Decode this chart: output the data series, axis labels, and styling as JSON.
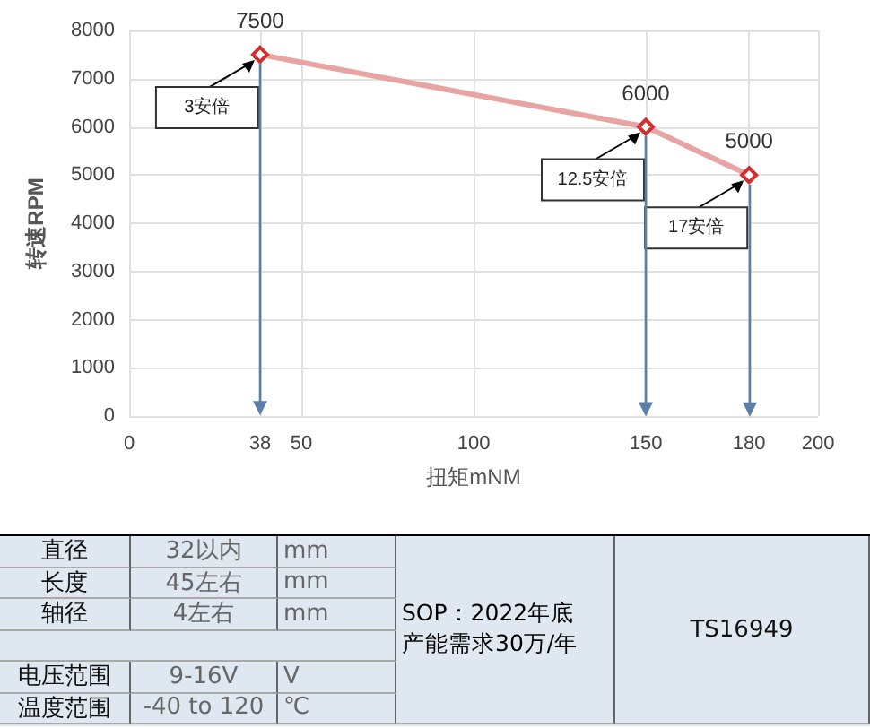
{
  "chart_data": {
    "type": "line",
    "xlabel": "扭矩mNM",
    "ylabel": "转速RPM",
    "x": [
      38,
      150,
      180
    ],
    "series": [
      {
        "color": "#e8a3a3",
        "values": [
          7500,
          6000,
          5000
        ]
      }
    ],
    "xlim": [
      0,
      200
    ],
    "xticks": [
      0,
      38,
      50,
      100,
      150,
      180,
      200
    ],
    "ylim": [
      0,
      8000
    ],
    "yticks": [
      0,
      1000,
      2000,
      3000,
      4000,
      5000,
      6000,
      7000,
      8000
    ],
    "grid": true,
    "marker": "diamond",
    "line_style": "solid",
    "data_labels": true,
    "ref_lines": [
      {
        "axis": "x",
        "value": 38,
        "color": "#5b7fa6"
      },
      {
        "axis": "x",
        "value": 150,
        "color": "#5b7fa6"
      },
      {
        "axis": "x",
        "value": 180,
        "color": "#5b7fa6"
      }
    ],
    "annotations": [
      {
        "text": "3安倍",
        "x": 38,
        "y": 7500
      },
      {
        "text": "12.5安倍",
        "x": 150,
        "y": 6000
      },
      {
        "text": "17安倍",
        "x": 180,
        "y": 5000
      },
      "直径",
      "32以内",
      "mm",
      "长度",
      "45左右",
      "mm",
      "轴径",
      "4左右",
      "mm",
      "电压范围",
      "9-16V",
      "V",
      "温度范围",
      "-40 to 120",
      "℃",
      "SOP：2022年底",
      "产能需求30万/年",
      "TS16949"
    ]
  }
}
